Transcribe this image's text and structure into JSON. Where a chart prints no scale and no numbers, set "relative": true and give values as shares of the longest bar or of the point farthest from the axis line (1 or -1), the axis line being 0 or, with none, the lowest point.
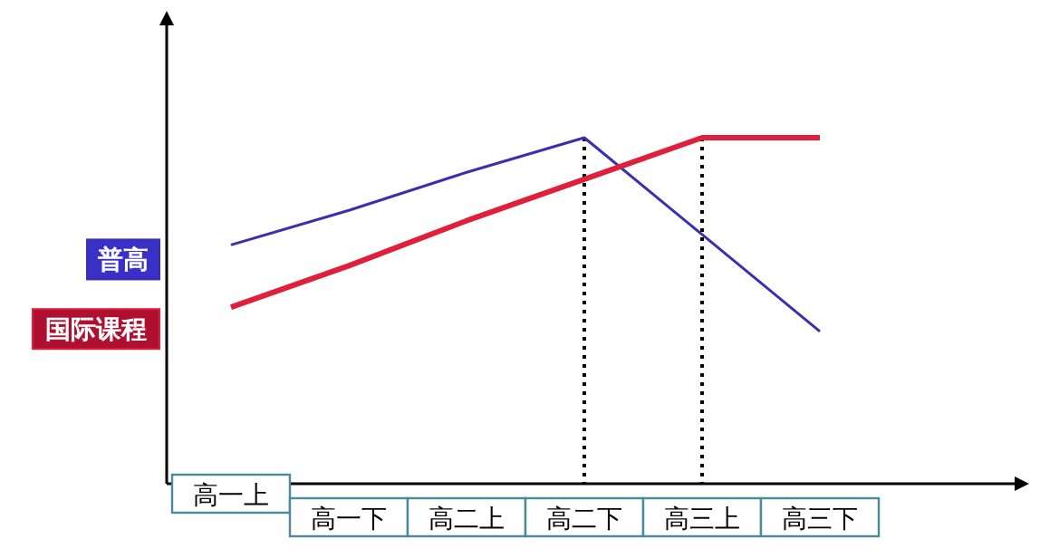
{
  "chart_data": {
    "type": "line",
    "relative": true,
    "categories": [
      "高一上",
      "高一下",
      "高二上",
      "高二下",
      "高三上",
      "高三下"
    ],
    "series": [
      {
        "name": "普高",
        "color": "#3a2fb0",
        "values": [
          0.69,
          0.79,
          0.9,
          1,
          0.72,
          0.44
        ]
      },
      {
        "name": "国际课程",
        "color": "#e0203a",
        "values": [
          0.51,
          0.63,
          0.76,
          0.88,
          1,
          1
        ]
      }
    ],
    "ref_lines": [
      {
        "axis": "x",
        "value": "高二下",
        "line_style": "dotted"
      },
      {
        "axis": "x",
        "value": "高三上",
        "line_style": "dotted"
      }
    ],
    "legend": "left",
    "marker": "none"
  }
}
